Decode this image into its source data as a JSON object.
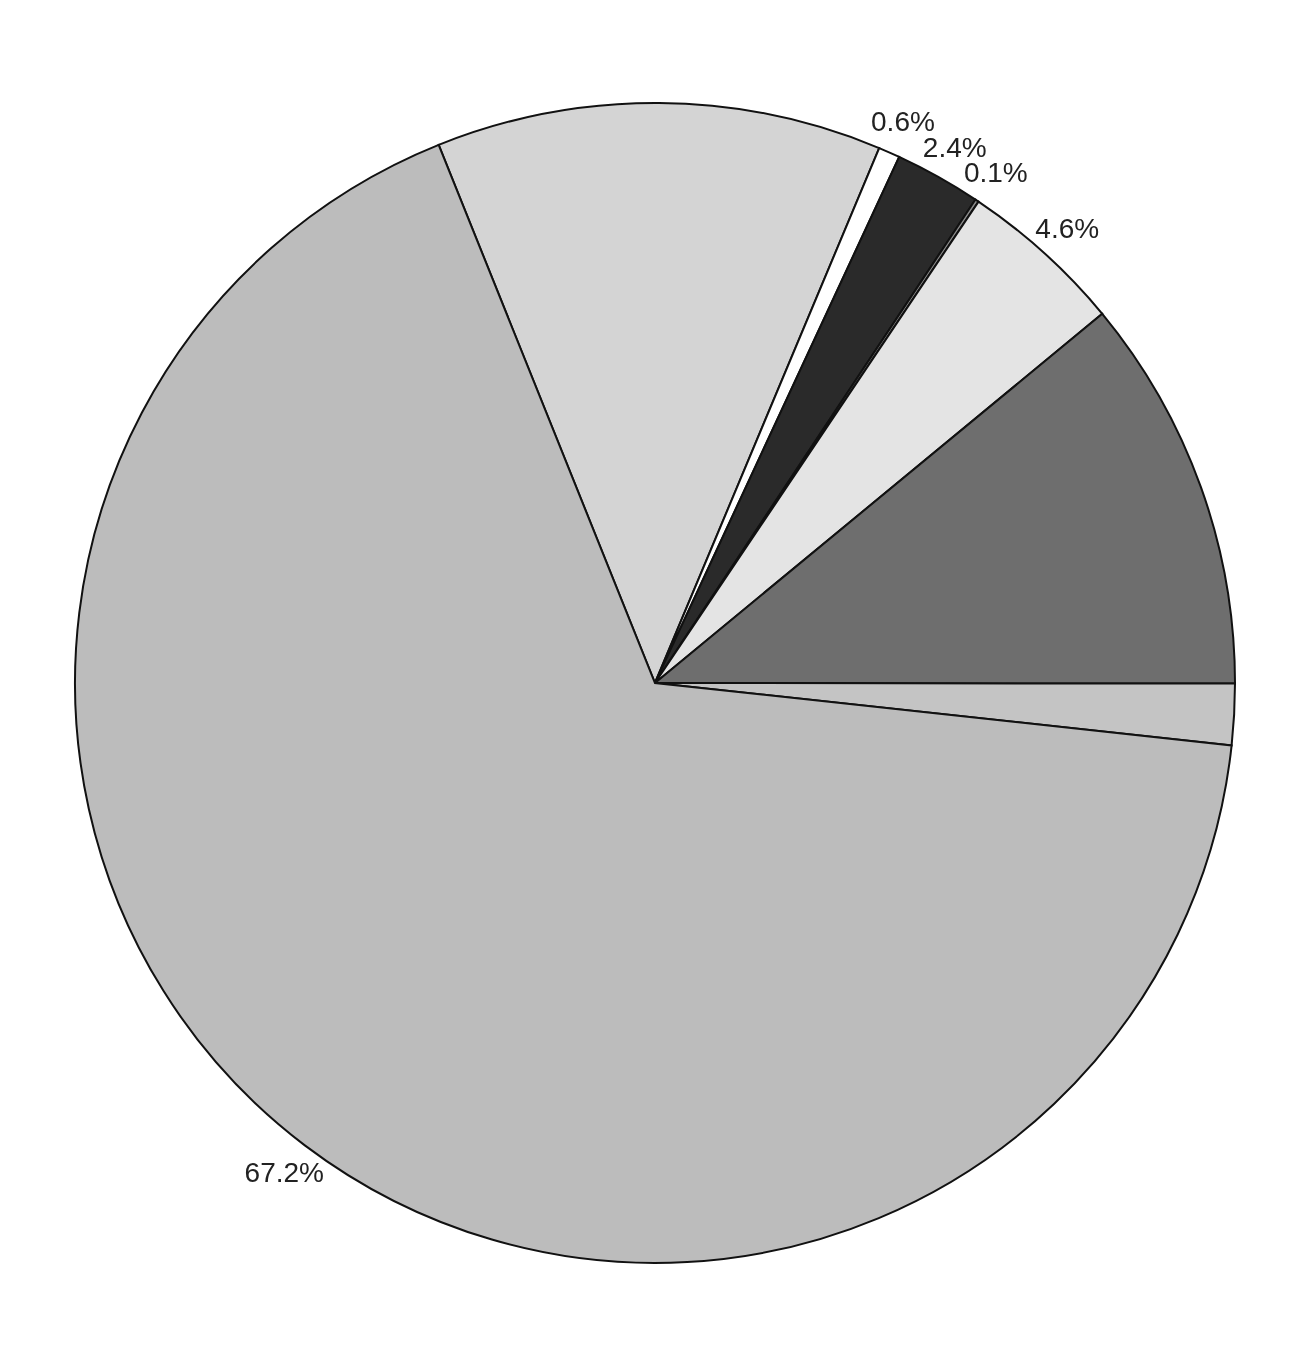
{
  "chart_data": {
    "type": "pie",
    "categories": [
      null,
      null,
      null,
      null,
      null,
      null,
      null,
      null
    ],
    "values": [
      12.4,
      0.6,
      2.4,
      0.1,
      4.6,
      11.0,
      1.7,
      67.2
    ],
    "colors": [
      "#d4d4d4",
      "#ffffff",
      "#2a2a2a",
      "#8a8a8a",
      "#e4e4e4",
      "#6e6e6e",
      "#c4c4c4",
      "#bcbcbc"
    ],
    "value_labels": [
      null,
      "0.6%",
      "2.4%",
      "0.1%",
      "4.6%",
      null,
      null,
      "67.2%"
    ]
  }
}
